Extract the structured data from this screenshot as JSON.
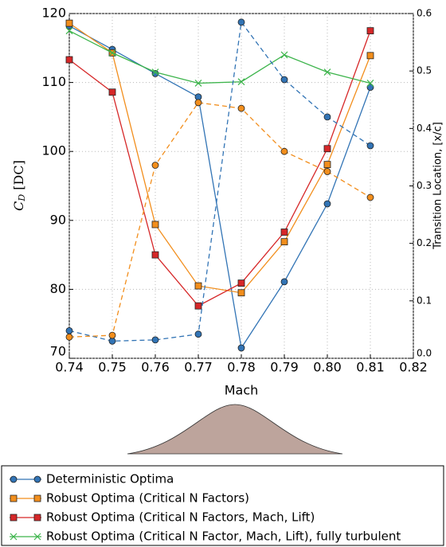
{
  "chart_data": {
    "type": "line",
    "xlabel": "Mach",
    "ylabel": [
      "C",
      "D",
      " [DC]"
    ],
    "y2label": "Transition Location, [x/c]",
    "x": [
      0.74,
      0.75,
      0.76,
      0.77,
      0.78,
      0.79,
      0.8,
      0.81
    ],
    "xlim": [
      0.74,
      0.82
    ],
    "xticks": [
      0.74,
      0.75,
      0.76,
      0.77,
      0.78,
      0.79,
      {
        "value": 0.8,
        "label": "0.80"
      },
      0.81,
      0.82
    ],
    "ylim": [
      70,
      120
    ],
    "yticks": [
      70,
      80,
      90,
      100,
      110,
      120
    ],
    "y2lim": [
      0,
      0.6
    ],
    "y2ticks": [
      {
        "value": 0,
        "label": "0.0"
      },
      0.1,
      0.2,
      0.3,
      0.4,
      0.5,
      0.6
    ],
    "grid": true,
    "series": [
      {
        "name": "Deterministic Optima",
        "color": "#3274b5",
        "marker": "circle",
        "linestyle": "solid",
        "values": [
          118.2,
          114.8,
          111.3,
          107.9,
          71.5,
          81.1,
          92.4,
          109.3
        ]
      },
      {
        "name": "Robust Optima (Critical N Factors)",
        "color": "#f28e1c",
        "marker": "square",
        "linestyle": "solid",
        "values": [
          118.6,
          114.3,
          89.4,
          80.5,
          79.5,
          86.9,
          98.1,
          113.9
        ]
      },
      {
        "name": "Robust Optima (Critical N Factors, Mach, Lift)",
        "color": "#d62728",
        "marker": "square",
        "linestyle": "solid",
        "values": [
          113.3,
          108.6,
          85.0,
          77.6,
          80.9,
          88.3,
          100.4,
          117.5
        ]
      },
      {
        "name": "Robust Optima (Critical N Factor, Mach, Lift), fully turbulent",
        "color": "#3cb44b",
        "marker": "x",
        "linestyle": "solid",
        "values": [
          117.5,
          114.3,
          111.5,
          109.9,
          110.1,
          114.0,
          111.5,
          109.9
        ]
      },
      {
        "color": "#3274b5",
        "marker": "circle",
        "linestyle": "dashed",
        "axis": "y2",
        "values": [
          0.048,
          0.03,
          0.032,
          0.042,
          0.585,
          0.485,
          0.42,
          0.37
        ]
      },
      {
        "color": "#f28e1c",
        "marker": "circle",
        "linestyle": "dashed",
        "axis": "y2",
        "values": [
          0.037,
          0.04,
          0.336,
          0.445,
          0.435,
          0.36,
          0.325,
          0.28
        ]
      }
    ]
  }
}
